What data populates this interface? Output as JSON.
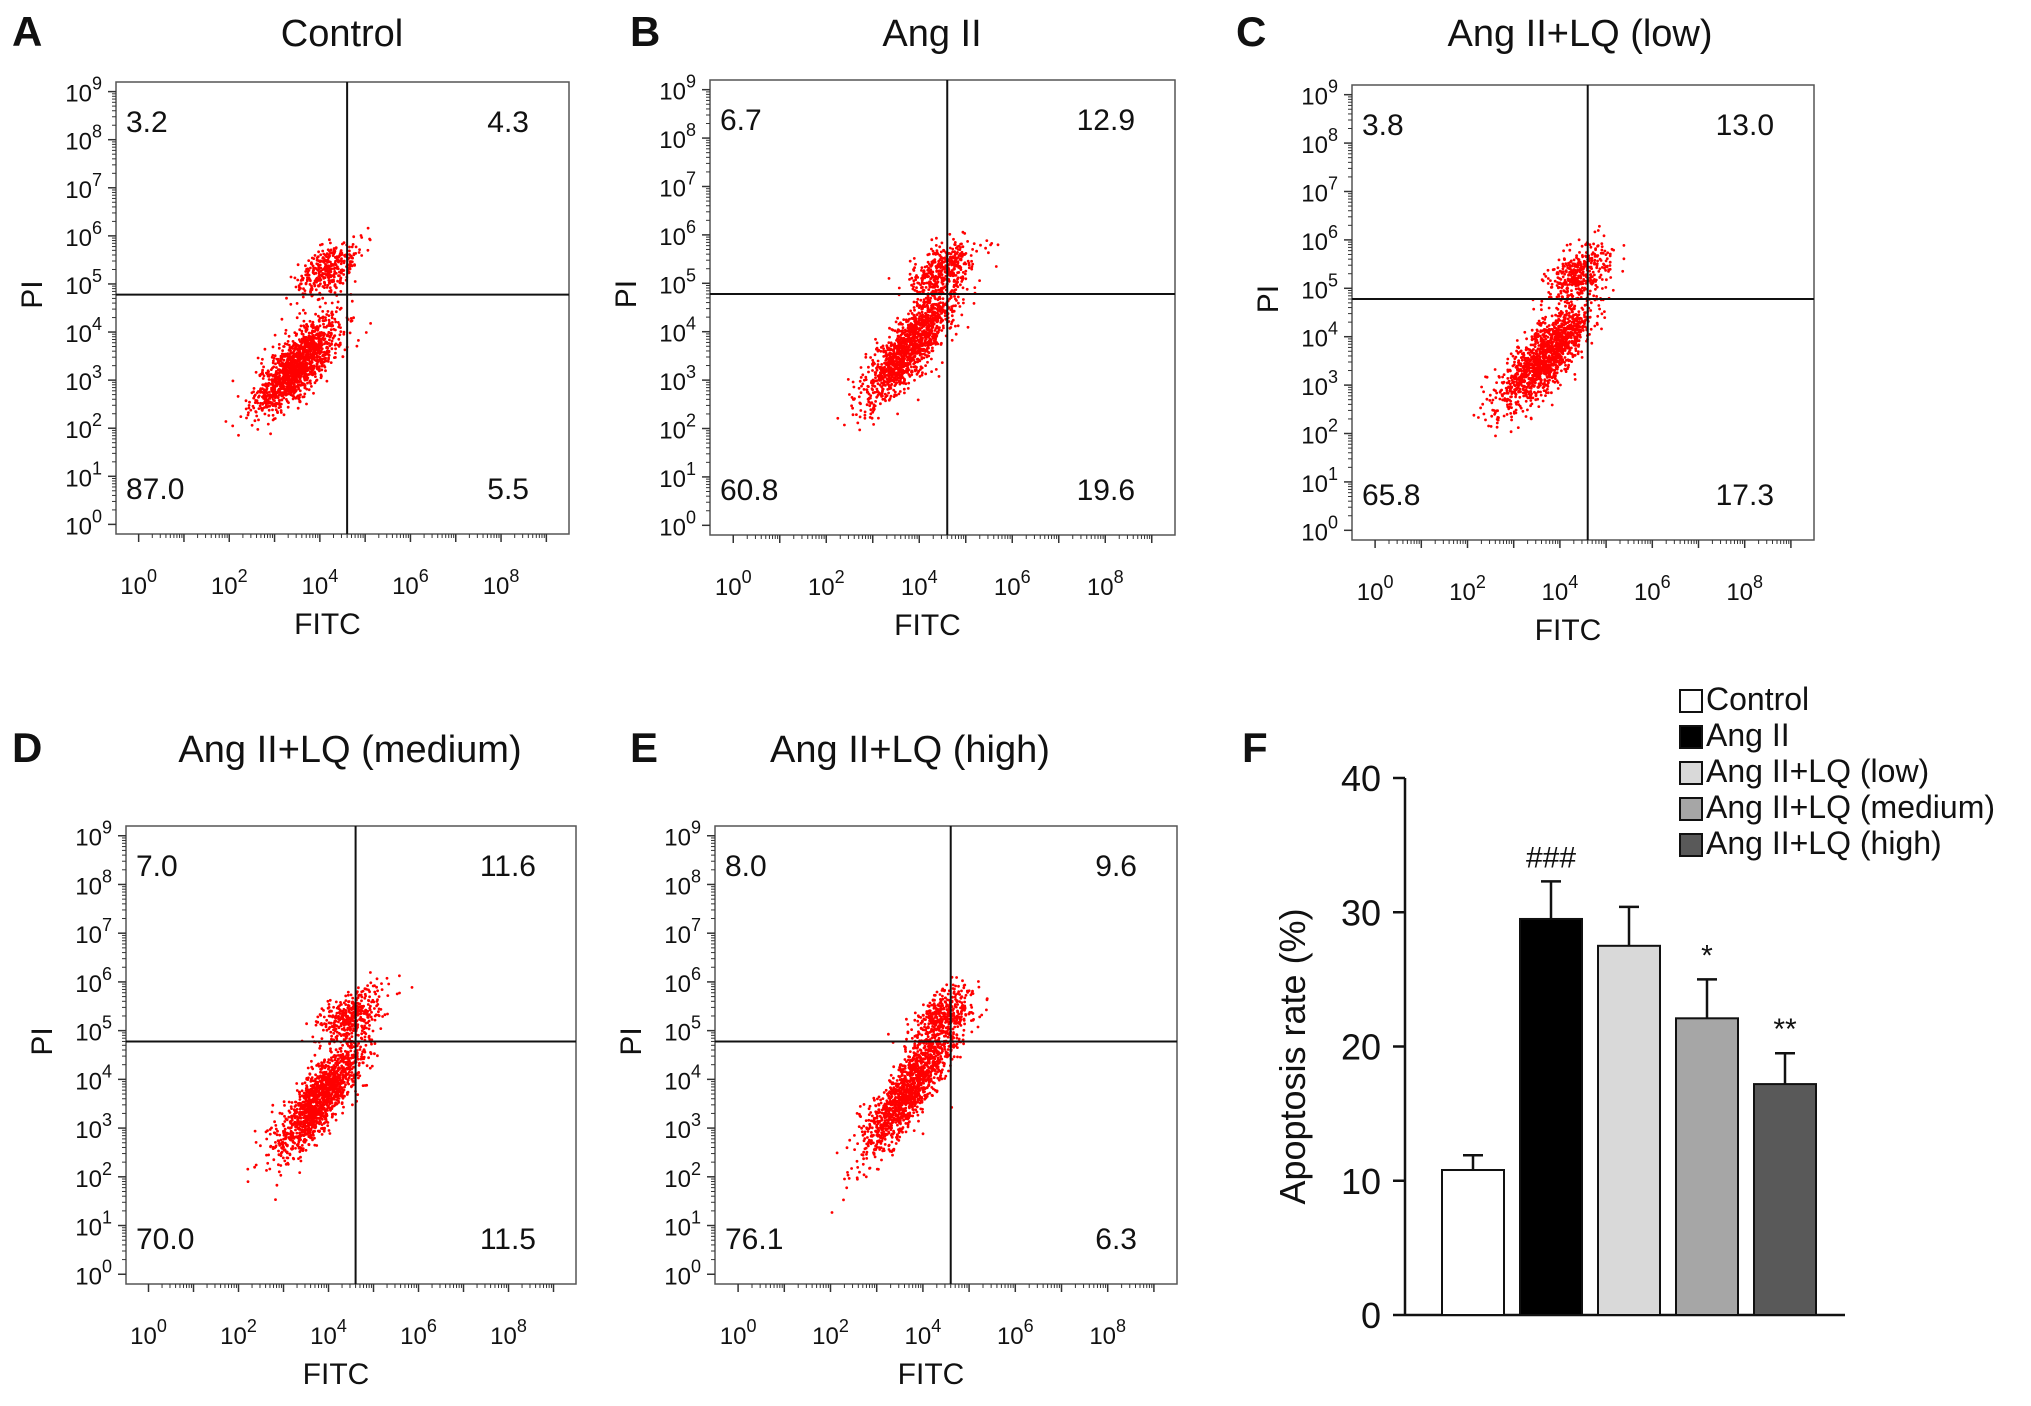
{
  "chart_data": [
    {
      "type": "scatter",
      "panel_letter": "A",
      "title": "Control",
      "xlabel": "FITC",
      "ylabel": "PI",
      "xscale": "log",
      "yscale": "log",
      "quadrant_gate": {
        "x": 40000,
        "y": 60000
      },
      "quadrants": {
        "upper_left": "3.2",
        "upper_right": "4.3",
        "lower_left": "87.0",
        "lower_right": "5.5"
      },
      "cloud": {
        "center_log_x": 3.5,
        "center_log_y": 3.3,
        "spread": 0.45,
        "tilt": 0.9
      },
      "point_color": "#ff0000"
    },
    {
      "type": "scatter",
      "panel_letter": "B",
      "title": "Ang II",
      "xlabel": "FITC",
      "ylabel": "PI",
      "xscale": "log",
      "yscale": "log",
      "quadrant_gate": {
        "x": 40000,
        "y": 60000
      },
      "quadrants": {
        "upper_left": "6.7",
        "upper_right": "12.9",
        "lower_left": "60.8",
        "lower_right": "19.6"
      },
      "cloud": {
        "center_log_x": 3.8,
        "center_log_y": 3.7,
        "spread": 0.5,
        "tilt": 1.1
      },
      "point_color": "#ff0000"
    },
    {
      "type": "scatter",
      "panel_letter": "C",
      "title": "Ang II+LQ (low)",
      "xlabel": "FITC",
      "ylabel": "PI",
      "xscale": "log",
      "yscale": "log",
      "quadrant_gate": {
        "x": 40000,
        "y": 60000
      },
      "quadrants": {
        "upper_left": "3.8",
        "upper_right": "13.0",
        "lower_left": "65.8",
        "lower_right": "17.3"
      },
      "cloud": {
        "center_log_x": 3.7,
        "center_log_y": 3.6,
        "spread": 0.5,
        "tilt": 1.0
      },
      "point_color": "#ff0000"
    },
    {
      "type": "scatter",
      "panel_letter": "D",
      "title": "Ang II+LQ (medium)",
      "xlabel": "FITC",
      "ylabel": "PI",
      "xscale": "log",
      "yscale": "log",
      "quadrant_gate": {
        "x": 40000,
        "y": 60000
      },
      "quadrants": {
        "upper_left": "7.0",
        "upper_right": "11.6",
        "lower_left": "70.0",
        "lower_right": "11.5"
      },
      "cloud": {
        "center_log_x": 3.8,
        "center_log_y": 3.6,
        "spread": 0.5,
        "tilt": 1.1
      },
      "point_color": "#ff0000"
    },
    {
      "type": "scatter",
      "panel_letter": "E",
      "title": "Ang II+LQ (high)",
      "xlabel": "FITC",
      "ylabel": "PI",
      "xscale": "log",
      "yscale": "log",
      "quadrant_gate": {
        "x": 40000,
        "y": 60000
      },
      "quadrants": {
        "upper_left": "8.0",
        "upper_right": "9.6",
        "lower_left": "76.1",
        "lower_right": "6.3"
      },
      "cloud": {
        "center_log_x": 3.7,
        "center_log_y": 3.8,
        "spread": 0.5,
        "tilt": 1.3
      },
      "point_color": "#ff0000"
    },
    {
      "type": "bar",
      "panel_letter": "F",
      "ylabel": "Apoptosis rate (%)",
      "ylim": [
        0,
        40
      ],
      "yticks": [
        0,
        10,
        20,
        30,
        40
      ],
      "categories": [
        "Control",
        "Ang II",
        "Ang II+LQ (low)",
        "Ang II+LQ (medium)",
        "Ang II+LQ (high)"
      ],
      "values": [
        10.8,
        29.5,
        27.5,
        22.1,
        17.2
      ],
      "errors": [
        1.1,
        2.8,
        2.9,
        2.9,
        2.3
      ],
      "annotations": [
        "",
        "###",
        "",
        "*",
        "**"
      ],
      "colors": [
        "#ffffff",
        "#000000",
        "#d9d9d9",
        "#a6a6a6",
        "#595959"
      ],
      "legend_position": "top-right"
    }
  ],
  "scatter_tick_exponents": [
    "0",
    "1",
    "2",
    "3",
    "4",
    "5",
    "6",
    "7",
    "8",
    "9"
  ],
  "scatter_tick_base": "10"
}
